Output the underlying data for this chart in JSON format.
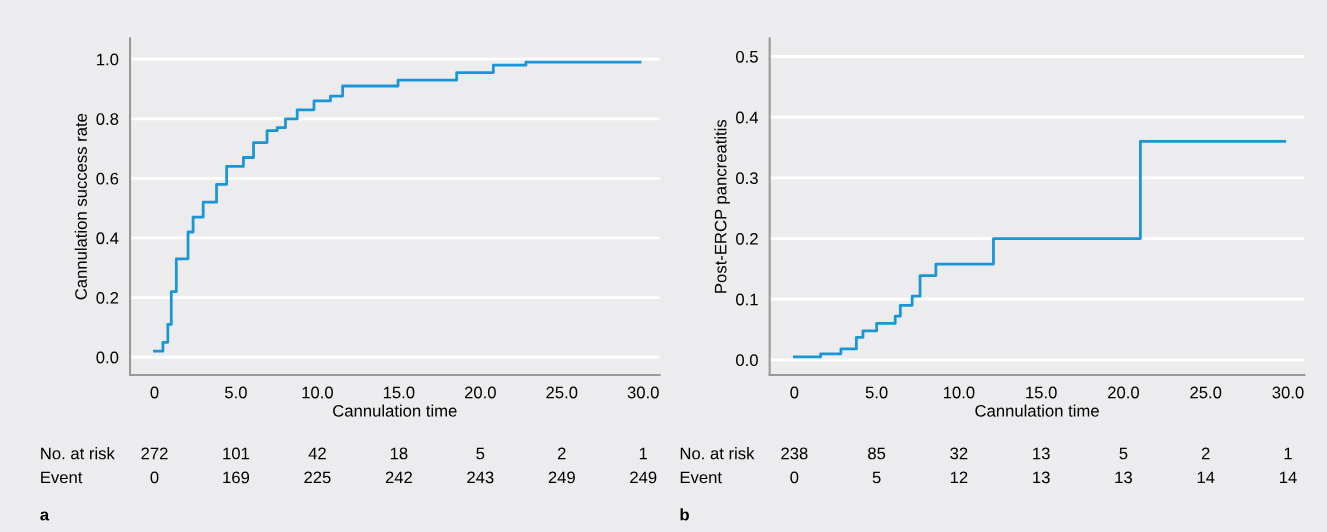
{
  "chart_data": [
    {
      "type": "step",
      "xlabel": "Cannulation time",
      "ylabel": "Cannulation success rate",
      "series": [
        {
          "color": "#1a96d4",
          "x": [
            0,
            0.52,
            0.82,
            1.03,
            1.34,
            2.06,
            2.37,
            2.99,
            3.81,
            4.43,
            5.46,
            6.08,
            6.91,
            7.53,
            8.04,
            8.76,
            9.79,
            10.8,
            11.55,
            13.9,
            14.95,
            18.45,
            18.55,
            20.7,
            20.8,
            22.8,
            29.8
          ],
          "values": [
            0.02,
            0.05,
            0.11,
            0.22,
            0.33,
            0.42,
            0.47,
            0.52,
            0.58,
            0.64,
            0.67,
            0.72,
            0.76,
            0.77,
            0.8,
            0.83,
            0.86,
            0.876,
            0.91,
            0.91,
            0.93,
            0.93,
            0.955,
            0.955,
            0.98,
            0.99,
            0.99
          ]
        }
      ],
      "xlim": [
        -1.5,
        31
      ],
      "ylim": [
        -0.06,
        1.07
      ],
      "xticks": [
        0,
        {
          "value": 5,
          "label": "5.0"
        },
        {
          "value": 10,
          "label": "10.0"
        },
        {
          "value": 15,
          "label": "15.0"
        },
        {
          "value": 20,
          "label": "20.0"
        },
        {
          "value": 25,
          "label": "25.0"
        },
        {
          "value": 30,
          "label": "30.0"
        }
      ],
      "yticks": [
        {
          "value": 0,
          "label": "0.0"
        },
        {
          "value": 0.2,
          "label": "0.2"
        },
        {
          "value": 0.4,
          "label": "0.4"
        },
        {
          "value": 0.6,
          "label": "0.6"
        },
        {
          "value": 0.8,
          "label": "0.8"
        },
        {
          "value": 1,
          "label": "1.0"
        }
      ],
      "grid": "y",
      "annotations": [
        "No. at risk",
        "272",
        "101",
        "42",
        "18",
        "5",
        "2",
        "1",
        "Event",
        "0",
        "169",
        "225",
        "242",
        "243",
        "249",
        "249",
        "a"
      ]
    },
    {
      "type": "step",
      "xlabel": "Cannulation time",
      "ylabel": "Post-ERCP pancreatitis",
      "series": [
        {
          "color": "#1a96d4",
          "x": [
            0,
            1.6,
            2.83,
            3.77,
            4.17,
            5.0,
            6.13,
            6.44,
            7.16,
            7.64,
            8.6,
            12.1,
            21.03,
            29.8
          ],
          "values": [
            0.005,
            0.01,
            0.018,
            0.037,
            0.048,
            0.06,
            0.072,
            0.09,
            0.105,
            0.139,
            0.158,
            0.2,
            0.36,
            0.36
          ]
        }
      ],
      "xlim": [
        -1.5,
        31
      ],
      "ylim": [
        -0.025,
        0.53
      ],
      "xticks": [
        0,
        {
          "value": 5,
          "label": "5.0"
        },
        {
          "value": 10,
          "label": "10.0"
        },
        {
          "value": 15,
          "label": "15.0"
        },
        {
          "value": 20,
          "label": "20.0"
        },
        {
          "value": 25,
          "label": "25.0"
        },
        {
          "value": 30,
          "label": "30.0"
        }
      ],
      "yticks": [
        {
          "value": 0,
          "label": "0.0"
        },
        {
          "value": 0.1,
          "label": "0.1"
        },
        {
          "value": 0.2,
          "label": "0.2"
        },
        {
          "value": 0.3,
          "label": "0.3"
        },
        {
          "value": 0.4,
          "label": "0.4"
        },
        {
          "value": 0.5,
          "label": "0.5"
        }
      ],
      "grid": "y",
      "annotations": [
        "No. at risk",
        "238",
        "85",
        "32",
        "13",
        "5",
        "2",
        "1",
        "Event",
        "0",
        "5",
        "12",
        "13",
        "13",
        "14",
        "14",
        "b"
      ]
    }
  ]
}
